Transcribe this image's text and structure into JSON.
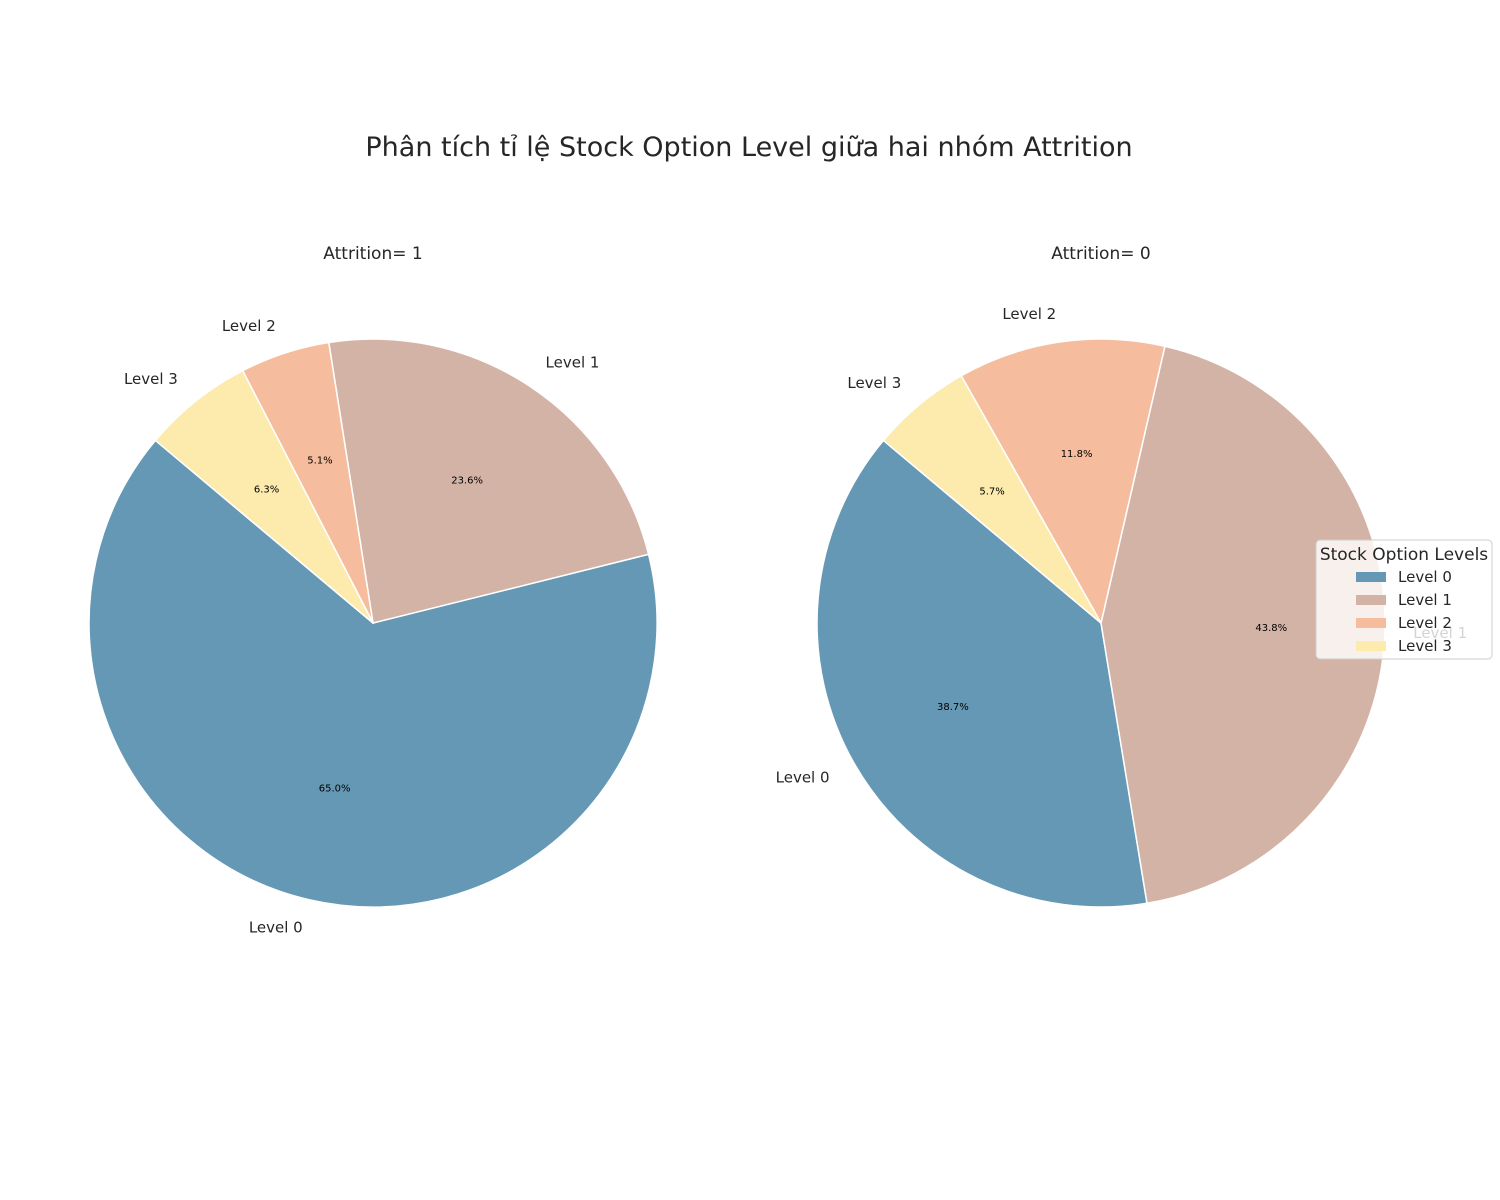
{
  "chart_data": {
    "type": "pie",
    "title": "Phân tích tỉ lệ Stock Option Level giữa hai nhóm Attrition",
    "categories": [
      "Level 0",
      "Level 1",
      "Level 2",
      "Level 3"
    ],
    "colors": [
      "#6598b4",
      "#d4b3a7",
      "#f5bd9d",
      "#fcebad"
    ],
    "pies": [
      {
        "title": "Attrition= 1",
        "values": [
          65.0,
          23.6,
          5.1,
          6.3
        ],
        "value_labels": [
          "65.0%",
          "23.6%",
          "5.1%",
          "6.3%"
        ]
      },
      {
        "title": "Attrition= 0",
        "values": [
          38.7,
          43.8,
          11.8,
          5.7
        ],
        "value_labels": [
          "38.7%",
          "43.8%",
          "11.8%",
          "5.7%"
        ]
      }
    ],
    "start_angle_deg": 140,
    "direction": "counterclockwise",
    "legend": {
      "title": "Stock Option Levels",
      "placement": "right",
      "entries": [
        "Level 0",
        "Level 1",
        "Level 2",
        "Level 3"
      ]
    }
  }
}
